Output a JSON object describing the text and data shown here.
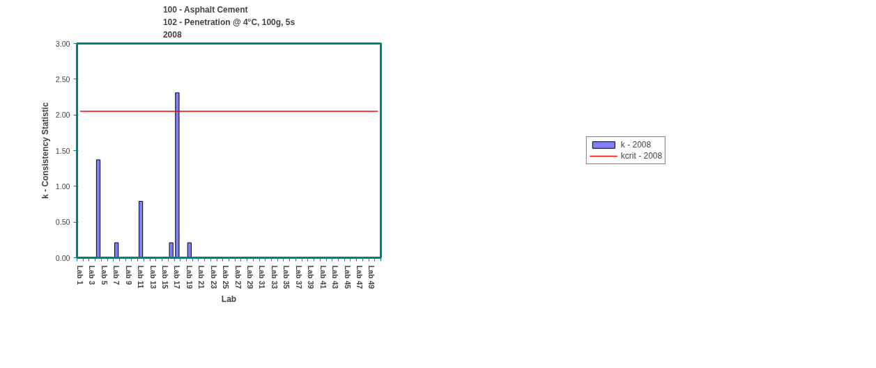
{
  "chart_data": {
    "type": "bar",
    "title": "100 - Asphalt Cement\n102 - Penetration @ 4°C, 100g, 5s\n2008",
    "xlabel": "Lab",
    "ylabel": "k - Consistency Statistic",
    "categories": [
      "Lab 1",
      null,
      "Lab 3",
      null,
      "Lab 5",
      null,
      "Lab 7",
      null,
      "Lab 9",
      null,
      "Lab 11",
      null,
      "Lab 13",
      null,
      "Lab 15",
      null,
      "Lab 17",
      null,
      "Lab 19",
      null,
      "Lab 21",
      null,
      "Lab 23",
      null,
      "Lab 25",
      null,
      "Lab 27",
      null,
      "Lab 29",
      null,
      "Lab 31",
      null,
      "Lab 33",
      null,
      "Lab 35",
      null,
      "Lab 37",
      null,
      "Lab 39",
      null,
      "Lab 41",
      null,
      "Lab 43",
      null,
      "Lab 45",
      null,
      "Lab 47",
      null,
      "Lab 49",
      null
    ],
    "series": [
      {
        "name": "k - 2008",
        "color": "#8080ff",
        "values": [
          null,
          null,
          null,
          1.37,
          null,
          null,
          0.21,
          null,
          null,
          null,
          0.79,
          null,
          null,
          null,
          null,
          0.21,
          2.31,
          null,
          0.21,
          null,
          null,
          null,
          null,
          null,
          null,
          null,
          null,
          null,
          null,
          null,
          null,
          null,
          null,
          null,
          null,
          null,
          null,
          null,
          null,
          null,
          null,
          null,
          null,
          null,
          null,
          null,
          null,
          null,
          null,
          null
        ]
      },
      {
        "name": "kcrit - 2008",
        "type": "line",
        "color": "#ff0000",
        "values": [
          2.05,
          2.05,
          2.05,
          2.05,
          2.05,
          2.05,
          2.05,
          2.05,
          2.05,
          2.05,
          2.05,
          2.05,
          2.05,
          2.05,
          2.05,
          2.05,
          2.05,
          2.05,
          2.05,
          2.05,
          2.05,
          2.05,
          2.05,
          2.05,
          2.05,
          2.05,
          2.05,
          2.05,
          2.05,
          2.05,
          2.05,
          2.05,
          2.05,
          2.05,
          2.05,
          2.05,
          2.05,
          2.05,
          2.05,
          2.05,
          2.05,
          2.05,
          2.05,
          2.05,
          2.05,
          2.05,
          2.05,
          2.05,
          2.05,
          2.05
        ]
      }
    ],
    "ylim": [
      0,
      3
    ],
    "yticks": [
      {
        "value": 0,
        "label": "0.00"
      },
      {
        "value": 0.5,
        "label": "0.50"
      },
      {
        "value": 1,
        "label": "1.00"
      },
      {
        "value": 1.5,
        "label": "1.50"
      },
      {
        "value": 2,
        "label": "2.00"
      },
      {
        "value": 2.5,
        "label": "2.50"
      },
      {
        "value": 3,
        "label": "3.00"
      }
    ],
    "grid": false,
    "legend": "right"
  }
}
